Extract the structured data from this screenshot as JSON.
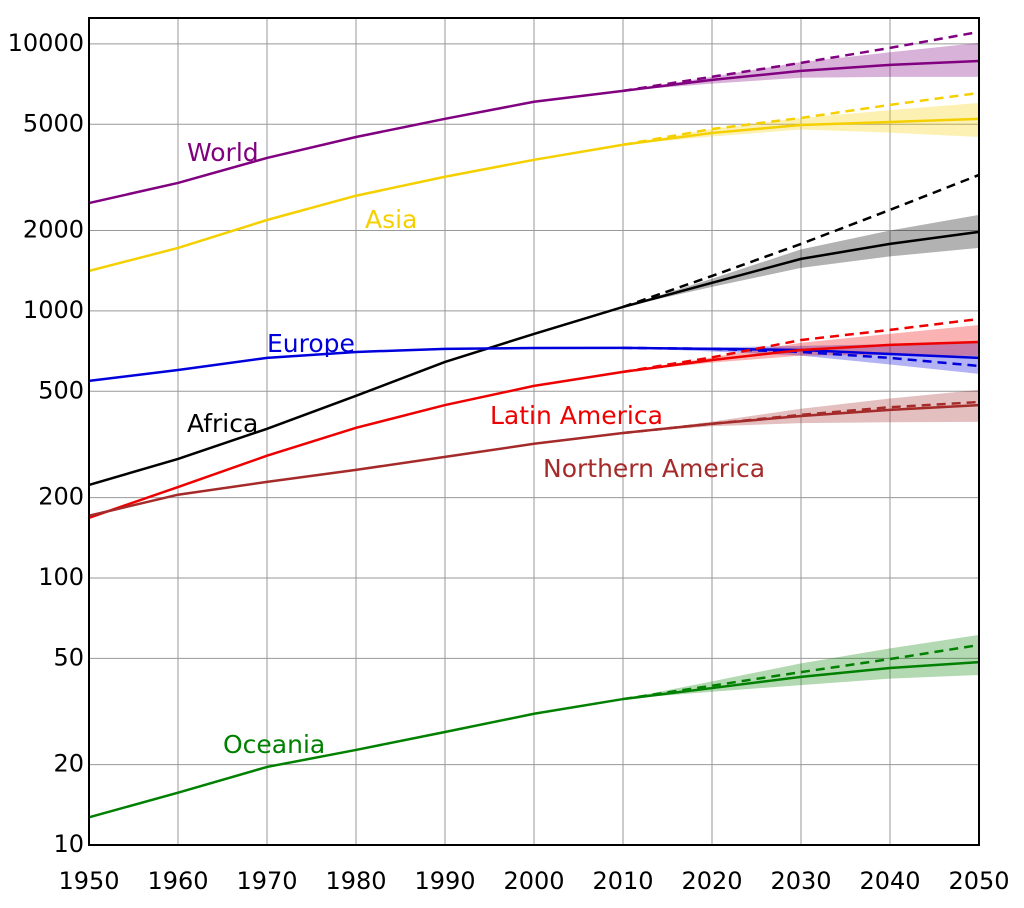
{
  "chart_data": {
    "type": "line",
    "x": [
      1950,
      1960,
      1970,
      1980,
      1990,
      2000,
      2010,
      2020,
      2030,
      2040,
      2050
    ],
    "xlim": [
      1950,
      2050
    ],
    "xticks": [
      1950,
      1960,
      1970,
      1980,
      1990,
      2000,
      2010,
      2020,
      2030,
      2040,
      2050
    ],
    "ylim": [
      10,
      12500
    ],
    "yticks": [
      10,
      20,
      50,
      100,
      200,
      500,
      1000,
      2000,
      5000,
      10000
    ],
    "log_scale": true,
    "grid": true,
    "series": [
      {
        "name": "World",
        "color": "#800080",
        "values": [
          2535,
          3015,
          3740,
          4480,
          5240,
          6070,
          6670,
          7330,
          7920,
          8340,
          8630
        ],
        "high_variant": [
          null,
          null,
          null,
          null,
          null,
          null,
          6670,
          7530,
          8490,
          9660,
          11090
        ],
        "band_low": [
          null,
          null,
          null,
          null,
          null,
          null,
          6670,
          7100,
          7470,
          7520,
          7520
        ],
        "band_high": [
          null,
          null,
          null,
          null,
          null,
          null,
          6670,
          7530,
          8540,
          9300,
          10090
        ]
      },
      {
        "name": "Asia",
        "color": "#f5d000",
        "values": [
          1412,
          1721,
          2190,
          2700,
          3180,
          3680,
          4190,
          4640,
          4970,
          5100,
          5240
        ],
        "high_variant": [
          null,
          null,
          null,
          null,
          null,
          null,
          4190,
          4800,
          5280,
          5910,
          6550
        ],
        "band_low": [
          null,
          null,
          null,
          null,
          null,
          null,
          4190,
          4500,
          4780,
          4650,
          4480
        ],
        "band_high": [
          null,
          null,
          null,
          null,
          null,
          null,
          4190,
          4800,
          5280,
          5650,
          6010
        ]
      },
      {
        "name": "Africa",
        "color": "#000000",
        "values": [
          223,
          279,
          362,
          481,
          644,
          820,
          1035,
          1274,
          1566,
          1782,
          1977
        ],
        "high_variant": [
          null,
          null,
          null,
          null,
          null,
          null,
          1035,
          1352,
          1782,
          2390,
          3230
        ],
        "band_low": [
          null,
          null,
          null,
          null,
          null,
          null,
          1035,
          1230,
          1450,
          1600,
          1722
        ],
        "band_high": [
          null,
          null,
          null,
          null,
          null,
          null,
          1035,
          1320,
          1700,
          2000,
          2290
        ]
      },
      {
        "name": "Europe",
        "color": "#0000dd",
        "values": [
          547,
          601,
          667,
          702,
          721,
          726,
          727,
          721,
          714,
          690,
          667
        ],
        "high_variant": [
          null,
          null,
          null,
          null,
          null,
          null,
          727,
          721,
          702,
          667,
          622
        ],
        "band_low": [
          null,
          null,
          null,
          null,
          null,
          null,
          727,
          705,
          680,
          630,
          581
        ],
        "band_high": [
          null,
          null,
          null,
          null,
          null,
          null,
          727,
          730,
          740,
          750,
          765
        ]
      },
      {
        "name": "Latin America",
        "color": "#ee0000",
        "values": [
          168,
          219,
          287,
          365,
          444,
          524,
          591,
          655,
          714,
          746,
          765
        ],
        "high_variant": [
          null,
          null,
          null,
          null,
          null,
          null,
          591,
          670,
          778,
          849,
          933
        ],
        "band_low": [
          null,
          null,
          null,
          null,
          null,
          null,
          591,
          640,
          680,
          685,
          678
        ],
        "band_high": [
          null,
          null,
          null,
          null,
          null,
          null,
          591,
          670,
          760,
          820,
          886
        ]
      },
      {
        "name": "Northern America",
        "color": "#a52a2a",
        "values": [
          171,
          205,
          229,
          254,
          284,
          318,
          349,
          378,
          404,
          426,
          444
        ],
        "high_variant": [
          null,
          null,
          null,
          null,
          null,
          null,
          349,
          378,
          408,
          436,
          456
        ],
        "band_low": [
          null,
          null,
          null,
          null,
          null,
          null,
          349,
          370,
          380,
          383,
          384
        ],
        "band_high": [
          null,
          null,
          null,
          null,
          null,
          null,
          349,
          385,
          430,
          470,
          506
        ]
      },
      {
        "name": "Oceania",
        "color": "#008000",
        "values": [
          12.7,
          15.7,
          19.6,
          22.7,
          26.5,
          31.0,
          35.2,
          38.7,
          42.6,
          46.0,
          48.4
        ],
        "high_variant": [
          null,
          null,
          null,
          null,
          null,
          null,
          35.2,
          39.5,
          44.4,
          49.7,
          56.1
        ],
        "band_low": [
          null,
          null,
          null,
          null,
          null,
          null,
          35.2,
          37.5,
          39.7,
          42.0,
          43.3
        ],
        "band_high": [
          null,
          null,
          null,
          null,
          null,
          null,
          35.2,
          41.0,
          47.9,
          54.5,
          61.2
        ]
      }
    ]
  }
}
